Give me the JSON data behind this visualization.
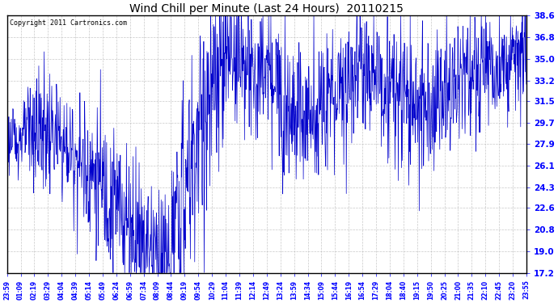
{
  "title": "Wind Chill per Minute (Last 24 Hours)  20110215",
  "copyright": "Copyright 2011 Cartronics.com",
  "line_color": "#0000CC",
  "bg_color": "#FFFFFF",
  "plot_bg_color": "#FFFFFF",
  "grid_color": "#BBBBBB",
  "yticks": [
    17.2,
    19.0,
    20.8,
    22.6,
    24.3,
    26.1,
    27.9,
    29.7,
    31.5,
    33.2,
    35.0,
    36.8,
    38.6
  ],
  "ylim": [
    17.2,
    38.6
  ],
  "xtick_labels": [
    "23:59",
    "01:09",
    "02:19",
    "03:29",
    "04:04",
    "04:39",
    "05:14",
    "05:49",
    "06:24",
    "06:59",
    "07:34",
    "08:09",
    "08:44",
    "09:19",
    "09:54",
    "10:29",
    "11:04",
    "11:39",
    "12:14",
    "12:49",
    "13:24",
    "13:59",
    "14:34",
    "15:09",
    "15:44",
    "16:19",
    "16:54",
    "17:29",
    "18:04",
    "18:40",
    "19:15",
    "19:50",
    "20:25",
    "21:00",
    "21:35",
    "22:10",
    "22:45",
    "23:20",
    "23:55"
  ],
  "num_points": 1440,
  "figwidth": 6.9,
  "figheight": 3.75,
  "dpi": 100
}
